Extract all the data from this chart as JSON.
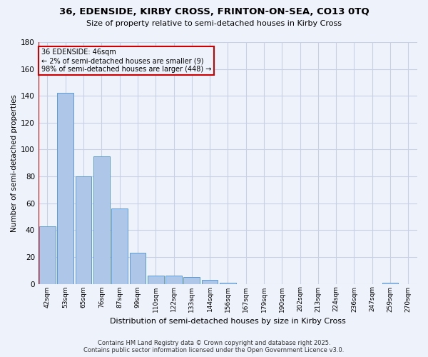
{
  "title1": "36, EDENSIDE, KIRBY CROSS, FRINTON-ON-SEA, CO13 0TQ",
  "title2": "Size of property relative to semi-detached houses in Kirby Cross",
  "xlabel": "Distribution of semi-detached houses by size in Kirby Cross",
  "ylabel": "Number of semi-detached properties",
  "categories": [
    "42sqm",
    "53sqm",
    "65sqm",
    "76sqm",
    "87sqm",
    "99sqm",
    "110sqm",
    "122sqm",
    "133sqm",
    "144sqm",
    "156sqm",
    "167sqm",
    "179sqm",
    "190sqm",
    "202sqm",
    "213sqm",
    "224sqm",
    "236sqm",
    "247sqm",
    "259sqm",
    "270sqm"
  ],
  "values": [
    43,
    142,
    80,
    95,
    56,
    23,
    6,
    6,
    5,
    3,
    1,
    0,
    0,
    0,
    0,
    0,
    0,
    0,
    0,
    1,
    0
  ],
  "bar_color": "#aec6e8",
  "bar_edge_color": "#5b9bd5",
  "annotation_line1": "36 EDENSIDE: 46sqm",
  "annotation_line2": "← 2% of semi-detached houses are smaller (9)",
  "annotation_line3": "98% of semi-detached houses are larger (448) →",
  "vline_color": "#cc0000",
  "annotation_box_color": "#cc0000",
  "ylim": [
    0,
    180
  ],
  "yticks": [
    0,
    20,
    40,
    60,
    80,
    100,
    120,
    140,
    160,
    180
  ],
  "background_color": "#eef2fb",
  "grid_color": "#c8d0e8",
  "footer1": "Contains HM Land Registry data © Crown copyright and database right 2025.",
  "footer2": "Contains public sector information licensed under the Open Government Licence v3.0."
}
